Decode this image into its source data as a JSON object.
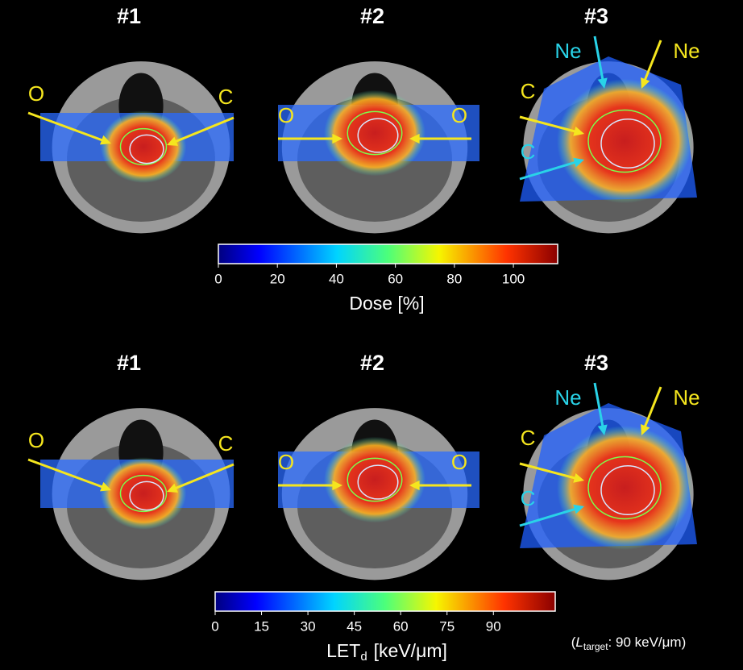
{
  "rows": [
    {
      "panels": [
        {
          "title": "#1",
          "labels": [
            {
              "text": "O",
              "color": "#f5e61e"
            },
            {
              "text": "C",
              "color": "#f5e61e"
            }
          ]
        },
        {
          "title": "#2",
          "labels": [
            {
              "text": "O",
              "color": "#f5e61e"
            },
            {
              "text": "O",
              "color": "#f5e61e"
            }
          ]
        },
        {
          "title": "#3",
          "labels": [
            {
              "text": "Ne",
              "color": "#29d3e8"
            },
            {
              "text": "Ne",
              "color": "#f5e61e"
            },
            {
              "text": "C",
              "color": "#f5e61e"
            },
            {
              "text": "C",
              "color": "#29d3e8"
            }
          ]
        }
      ],
      "colorbar": {
        "label": "Dose [%]",
        "lim": [
          0,
          115
        ],
        "ticks": [
          0,
          20,
          40,
          60,
          80,
          100
        ]
      }
    },
    {
      "panels": [
        {
          "title": "#1",
          "labels": [
            {
              "text": "O",
              "color": "#f5e61e"
            },
            {
              "text": "C",
              "color": "#f5e61e"
            }
          ]
        },
        {
          "title": "#2",
          "labels": [
            {
              "text": "O",
              "color": "#f5e61e"
            },
            {
              "text": "O",
              "color": "#f5e61e"
            }
          ]
        },
        {
          "title": "#3",
          "labels": [
            {
              "text": "Ne",
              "color": "#29d3e8"
            },
            {
              "text": "Ne",
              "color": "#f5e61e"
            },
            {
              "text": "C",
              "color": "#f5e61e"
            },
            {
              "text": "C",
              "color": "#29d3e8"
            }
          ]
        }
      ],
      "colorbar": {
        "label": "LET",
        "label_sub": "d",
        "label_unit": "[keV/μm]",
        "lim": [
          0,
          110
        ],
        "ticks": [
          0,
          15,
          30,
          45,
          60,
          75,
          90
        ]
      }
    }
  ],
  "note": {
    "open": "(",
    "symbol": "L",
    "sub": "target",
    "text": ": 90 keV/μm)"
  }
}
